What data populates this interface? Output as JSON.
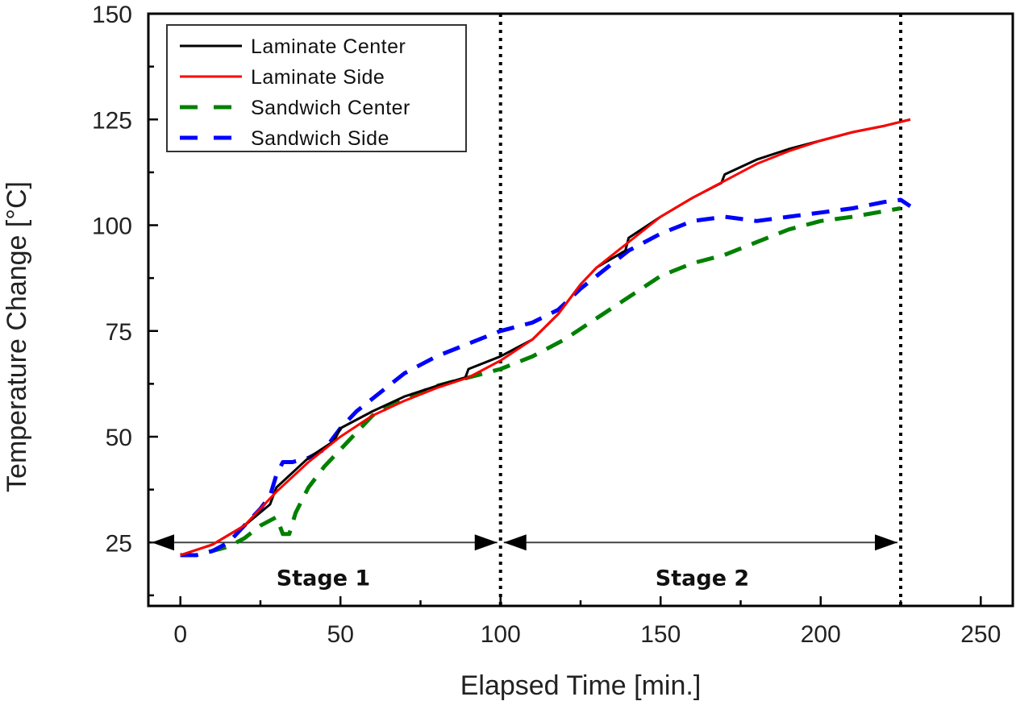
{
  "chart_data": {
    "type": "line",
    "title": "",
    "xlabel": "Elapsed Time [min.]",
    "ylabel": "Temperature Change [°C]",
    "xlim": [
      -10,
      260
    ],
    "ylim": [
      10,
      150
    ],
    "xticks": [
      0,
      50,
      100,
      150,
      200,
      250
    ],
    "xtick_labels": [
      "0",
      "50",
      "100",
      "150",
      "200",
      "250"
    ],
    "xminor_ticks": [
      25,
      75,
      125,
      175,
      225
    ],
    "yticks": [
      25,
      50,
      75,
      100,
      125,
      150
    ],
    "ytick_labels": [
      "25",
      "50",
      "75",
      "100",
      "125",
      "150"
    ],
    "yminor_ticks": [
      12.5,
      37.5,
      62.5,
      87.5,
      112.5,
      137.5
    ],
    "grid": false,
    "legend_position": "top-left",
    "series": [
      {
        "name": "Laminate Center",
        "color": "#000000",
        "style": "solid",
        "x": [
          0,
          10,
          20,
          28,
          30,
          40,
          48,
          50,
          60,
          70,
          80,
          89,
          90,
          100,
          110,
          118,
          125,
          130,
          139,
          140,
          150,
          160,
          169,
          170,
          180,
          190,
          200,
          210,
          220,
          228
        ],
        "y": [
          22,
          24.5,
          29,
          34,
          38,
          45,
          49,
          52,
          56,
          59.5,
          62,
          64,
          66,
          69,
          73,
          79,
          86,
          90,
          94,
          97,
          102,
          106.5,
          110,
          112,
          115.5,
          118,
          120,
          122,
          123.5,
          125
        ]
      },
      {
        "name": "Laminate Side",
        "color": "#ff0000",
        "style": "solid",
        "x": [
          0,
          10,
          20,
          30,
          40,
          50,
          60,
          70,
          80,
          90,
          100,
          110,
          118,
          125,
          130,
          140,
          150,
          160,
          170,
          180,
          190,
          200,
          210,
          220,
          228
        ],
        "y": [
          22,
          24.5,
          29,
          37,
          44,
          50,
          55,
          58.5,
          61.5,
          64,
          68,
          73,
          79,
          86,
          90,
          96,
          102,
          106.5,
          110.5,
          114.5,
          117.5,
          120,
          122,
          123.5,
          125
        ]
      },
      {
        "name": "Sandwich Center",
        "color": "#008000",
        "style": "dashed",
        "x": [
          0,
          5,
          10,
          15,
          20,
          25,
          30,
          32,
          34,
          36,
          40,
          45,
          50,
          55,
          60,
          70,
          80,
          90,
          100,
          110,
          120,
          130,
          140,
          150,
          160,
          170,
          180,
          190,
          200,
          210,
          225
        ],
        "y": [
          22,
          22,
          23,
          24,
          26,
          29,
          31,
          27,
          27,
          32,
          38,
          43,
          47,
          51,
          55,
          59,
          62,
          64,
          66,
          69,
          73,
          78,
          83,
          88,
          91,
          93,
          96,
          99,
          101,
          102,
          104
        ]
      },
      {
        "name": "Sandwich Side",
        "color": "#0000ff",
        "style": "dashed",
        "x": [
          0,
          5,
          10,
          15,
          20,
          25,
          28,
          30,
          32,
          35,
          40,
          45,
          50,
          55,
          60,
          65,
          70,
          80,
          90,
          100,
          110,
          118,
          125,
          130,
          140,
          150,
          160,
          170,
          180,
          190,
          200,
          210,
          220,
          225,
          228
        ],
        "y": [
          22,
          22,
          23,
          25,
          29,
          33,
          36,
          41,
          44,
          44,
          45,
          47,
          52,
          56,
          59,
          62,
          65,
          69,
          72,
          75,
          77,
          80,
          85,
          88,
          94,
          98,
          101,
          102,
          101,
          102,
          103,
          104,
          105.5,
          106,
          104.5
        ]
      }
    ],
    "annotations": {
      "stage_boundaries_x": [
        100,
        225
      ],
      "arrow_y": 25,
      "stages": [
        {
          "label": "Stage 1",
          "x_start": -10,
          "x_end": 100
        },
        {
          "label": "Stage 2",
          "x_start": 100,
          "x_end": 225
        }
      ]
    }
  }
}
